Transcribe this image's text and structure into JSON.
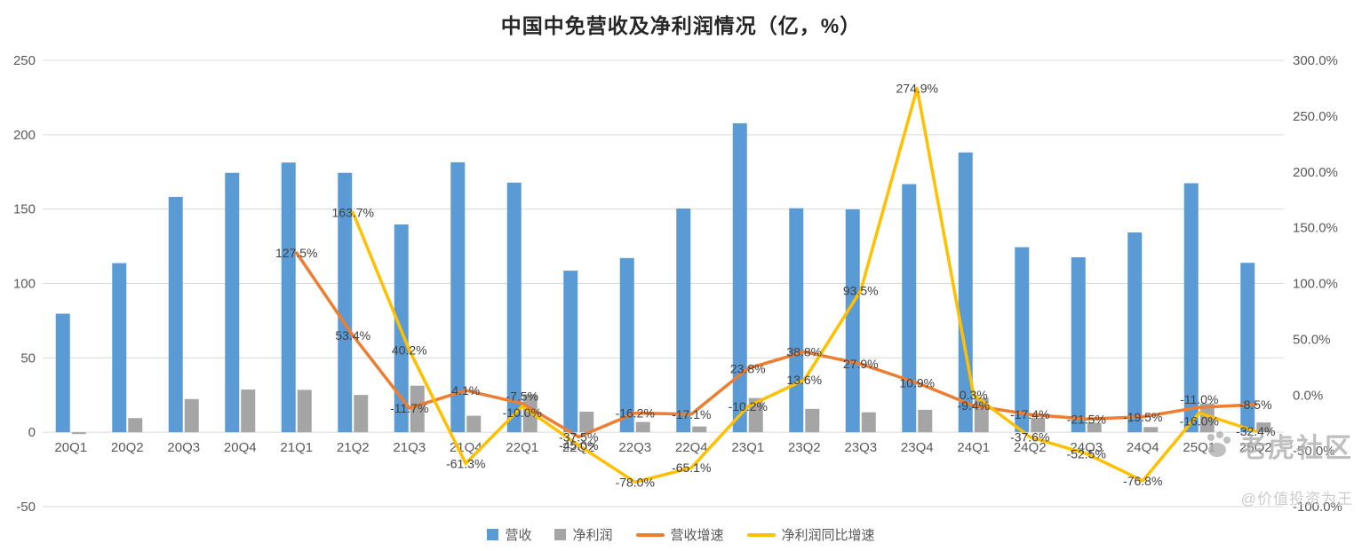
{
  "title": "中国中免营收及净利润情况（亿，%）",
  "watermark": {
    "brand": "老虎社区",
    "handle": "@价值投资为王"
  },
  "legend": [
    {
      "label": "营收",
      "type": "bar",
      "color": "#5B9BD5"
    },
    {
      "label": "净利润",
      "type": "bar",
      "color": "#A5A5A5"
    },
    {
      "label": "营收增速",
      "type": "line",
      "color": "#ED7D31"
    },
    {
      "label": "净利润同比增速",
      "type": "line",
      "color": "#FFC000"
    }
  ],
  "axes": {
    "left_ticks": [
      250,
      200,
      150,
      100,
      50,
      0,
      -50
    ],
    "left_tick_labels": [
      "250",
      "200",
      "150",
      "100",
      "50",
      "0",
      "-50"
    ],
    "right_ticks": [
      300,
      250,
      200,
      150,
      100,
      50,
      0,
      -50,
      -100
    ],
    "right_tick_labels": [
      "300.0%",
      "250.0%",
      "200.0%",
      "150.0%",
      "100.0%",
      "50.0%",
      "0.0%",
      "-50.0%",
      "-100.0%"
    ]
  },
  "chart_data": {
    "type": "combo-bar-line",
    "title": "中国中免营收及净利润情况（亿，%）",
    "categories": [
      "20Q1",
      "20Q2",
      "20Q3",
      "20Q4",
      "21Q1",
      "21Q2",
      "21Q3",
      "21Q4",
      "22Q1",
      "22Q2",
      "22Q3",
      "22Q4",
      "23Q1",
      "23Q2",
      "23Q3",
      "23Q4",
      "24Q1",
      "24Q2",
      "24Q3",
      "24Q4",
      "25Q1",
      "25Q2"
    ],
    "ylim_left": [
      -50,
      250
    ],
    "ylim_right": [
      -100,
      300
    ],
    "grid": true,
    "legend_position": "bottom",
    "series": [
      {
        "name": "营收",
        "type": "bar",
        "axis": "left",
        "color": "#5B9BD5",
        "values": [
          79.7,
          113.7,
          158.2,
          174.4,
          181.3,
          174.4,
          139.7,
          181.5,
          167.8,
          108.6,
          117.1,
          150.4,
          207.7,
          150.6,
          149.8,
          166.8,
          188.1,
          124.4,
          117.6,
          134.3,
          167.4,
          113.9
        ]
      },
      {
        "name": "净利润",
        "type": "bar",
        "axis": "left",
        "color": "#A5A5A5",
        "values": [
          -1.2,
          9.5,
          22.3,
          28.7,
          28.5,
          25.1,
          31.3,
          11.1,
          25.6,
          13.8,
          6.9,
          3.9,
          23.0,
          15.7,
          13.4,
          15.1,
          23.1,
          9.8,
          6.4,
          3.5,
          19.4,
          6.6
        ]
      },
      {
        "name": "营收增速",
        "type": "line",
        "axis": "right",
        "color": "#ED7D31",
        "values": [
          null,
          null,
          null,
          null,
          127.5,
          53.4,
          -11.7,
          4.1,
          -7.5,
          -37.5,
          -16.2,
          -17.1,
          23.8,
          38.8,
          27.9,
          10.9,
          -9.4,
          -17.4,
          -21.5,
          -19.5,
          -11.0,
          -8.5
        ],
        "labels": [
          "",
          "",
          "",
          "",
          "127.5%",
          "53.4%",
          "-11.7%",
          "4.1%",
          "-7.5%",
          "-37.5%",
          "-16.2%",
          "-17.1%",
          "23.8%",
          "38.8%",
          "27.9%",
          "10.9%",
          "-9.4%",
          "-17.4%",
          "-21.5%",
          "-19.5%",
          "-11.0%",
          "-8.5%"
        ]
      },
      {
        "name": "净利润同比增速",
        "type": "line",
        "axis": "right",
        "color": "#FFC000",
        "values": [
          null,
          null,
          null,
          null,
          null,
          163.7,
          40.2,
          -61.3,
          -10.0,
          -45.0,
          -78.0,
          -65.1,
          -10.2,
          13.6,
          93.5,
          274.9,
          0.3,
          -37.6,
          -52.5,
          -76.8,
          -16.0,
          -32.4
        ],
        "labels": [
          "",
          "",
          "",
          "",
          "",
          "163.7%",
          "40.2%",
          "-61.3%",
          "-10.0%",
          "-45.0%",
          "-78.0%",
          "-65.1%",
          "-10.2%",
          "13.6%",
          "93.5%",
          "274.9%",
          "0.3%",
          "-37.6%",
          "-52.5%",
          "-76.8%",
          "-16.0%",
          "-32.4%"
        ]
      }
    ]
  }
}
